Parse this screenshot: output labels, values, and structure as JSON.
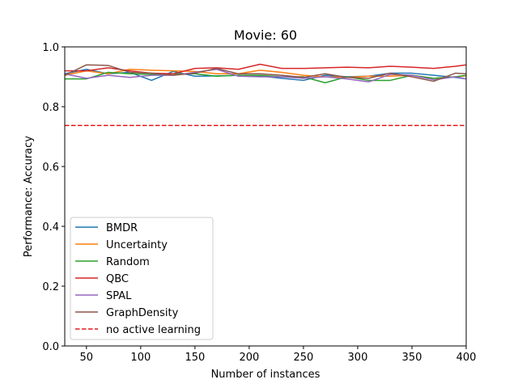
{
  "chart_data": {
    "type": "line",
    "title": "Movie: 60",
    "xlabel": "Number of instances",
    "ylabel": "Performance: Accuracy",
    "xlim": [
      30,
      400
    ],
    "ylim": [
      0.0,
      1.0
    ],
    "xticks": [
      50,
      100,
      150,
      200,
      250,
      300,
      350,
      400
    ],
    "xtick_labels": [
      "50",
      "100",
      "150",
      "200",
      "250",
      "300",
      "350",
      "400"
    ],
    "yticks": [
      0.0,
      0.2,
      0.4,
      0.6,
      0.8,
      1.0
    ],
    "ytick_labels": [
      "0.0",
      "0.2",
      "0.4",
      "0.6",
      "0.8",
      "1.0"
    ],
    "grid": false,
    "legend_position": "lower-left",
    "x": [
      30,
      50,
      70,
      90,
      110,
      130,
      150,
      170,
      190,
      210,
      230,
      250,
      270,
      290,
      310,
      330,
      350,
      370,
      390,
      400
    ],
    "series": [
      {
        "name": "BMDR",
        "color": "#1f77b4",
        "style": "solid",
        "values": [
          0.91,
          0.925,
          0.91,
          0.915,
          0.888,
          0.918,
          0.902,
          0.903,
          0.905,
          0.903,
          0.895,
          0.888,
          0.905,
          0.9,
          0.902,
          0.912,
          0.912,
          0.905,
          0.898,
          0.893
        ]
      },
      {
        "name": "Uncertainty",
        "color": "#ff7f0e",
        "style": "solid",
        "values": [
          0.905,
          0.92,
          0.91,
          0.925,
          0.922,
          0.92,
          0.918,
          0.91,
          0.91,
          0.922,
          0.915,
          0.905,
          0.9,
          0.898,
          0.902,
          0.902,
          0.905,
          0.895,
          0.9,
          0.903
        ]
      },
      {
        "name": "Random",
        "color": "#2ca02c",
        "style": "solid",
        "values": [
          0.893,
          0.893,
          0.915,
          0.91,
          0.908,
          0.91,
          0.91,
          0.902,
          0.905,
          0.905,
          0.9,
          0.9,
          0.88,
          0.9,
          0.888,
          0.888,
          0.905,
          0.895,
          0.9,
          0.905
        ]
      },
      {
        "name": "QBC",
        "color": "#d62728",
        "style": "solid",
        "values": [
          0.92,
          0.92,
          0.93,
          0.92,
          0.912,
          0.91,
          0.928,
          0.93,
          0.925,
          0.942,
          0.928,
          0.928,
          0.93,
          0.932,
          0.93,
          0.935,
          0.932,
          0.928,
          0.935,
          0.94
        ]
      },
      {
        "name": "SPAL",
        "color": "#9467bd",
        "style": "solid",
        "values": [
          0.91,
          0.895,
          0.905,
          0.898,
          0.905,
          0.905,
          0.915,
          0.925,
          0.902,
          0.9,
          0.9,
          0.895,
          0.9,
          0.893,
          0.883,
          0.908,
          0.905,
          0.89,
          0.9,
          0.893
        ]
      },
      {
        "name": "GraphDensity",
        "color": "#8c564b",
        "style": "solid",
        "values": [
          0.905,
          0.94,
          0.938,
          0.915,
          0.912,
          0.905,
          0.912,
          0.928,
          0.91,
          0.91,
          0.905,
          0.898,
          0.91,
          0.898,
          0.895,
          0.912,
          0.9,
          0.885,
          0.912,
          0.91
        ]
      },
      {
        "name": "no active learning",
        "color": "#e31a1c",
        "style": "dashed",
        "values": [
          0.737,
          0.737,
          0.737,
          0.737,
          0.737,
          0.737,
          0.737,
          0.737,
          0.737,
          0.737,
          0.737,
          0.737,
          0.737,
          0.737,
          0.737,
          0.737,
          0.737,
          0.737,
          0.737,
          0.737
        ]
      }
    ]
  }
}
